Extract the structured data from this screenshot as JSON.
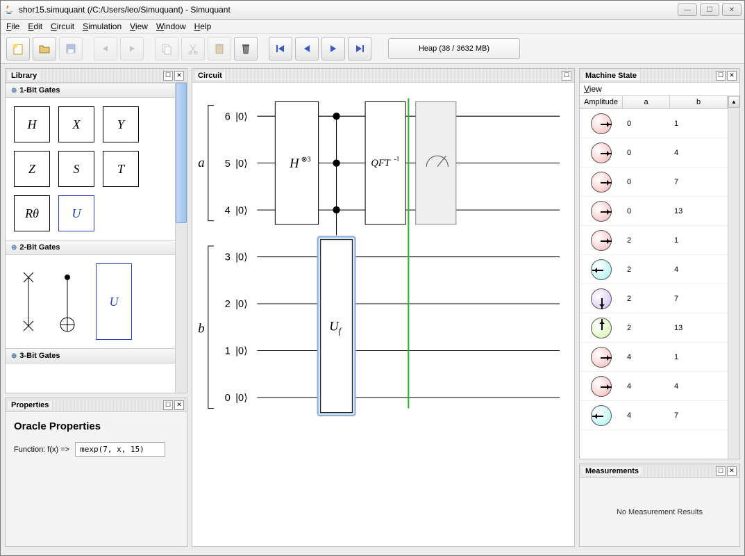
{
  "window": {
    "title": "shor15.simuquant (/C:/Users/leo/Simuquant) - Simuquant"
  },
  "menu": {
    "file": "File",
    "edit": "Edit",
    "circuit": "Circuit",
    "simulation": "Simulation",
    "view": "View",
    "window": "Window",
    "help": "Help"
  },
  "toolbar": {
    "heap": "Heap (38 / 3632 MB)"
  },
  "panels": {
    "library": "Library",
    "circuit": "Circuit",
    "properties": "Properties",
    "machine_state": "Machine State",
    "measurements": "Measurements"
  },
  "library": {
    "cat1": "1-Bit Gates",
    "cat2": "2-Bit Gates",
    "cat3": "3-Bit Gates",
    "gates1": {
      "h": "H",
      "x": "X",
      "y": "Y",
      "z": "Z",
      "s": "S",
      "t": "T",
      "rtheta": "Rθ",
      "u": "U"
    },
    "gates2": {
      "u": "U"
    }
  },
  "properties": {
    "title": "Oracle Properties",
    "label": "Function: f(x) =>",
    "value": "mexp(7, x, 15)"
  },
  "circuit": {
    "reg_a": "a",
    "reg_b": "b",
    "qubits_a": [
      {
        "idx": "6",
        "ket": "|0⟩"
      },
      {
        "idx": "5",
        "ket": "|0⟩"
      },
      {
        "idx": "4",
        "ket": "|0⟩"
      }
    ],
    "qubits_b": [
      {
        "idx": "3",
        "ket": "|0⟩"
      },
      {
        "idx": "2",
        "ket": "|0⟩"
      },
      {
        "idx": "1",
        "ket": "|0⟩"
      },
      {
        "idx": "0",
        "ket": "|0⟩"
      }
    ],
    "gate_h": "H",
    "gate_h_sup": "⊗3",
    "gate_uf": "U",
    "gate_uf_sub": "f",
    "gate_qft": "QFT",
    "gate_qft_sup": "-1"
  },
  "machine_state": {
    "view": "View",
    "col_amp": "Amplitude",
    "col_a": "a",
    "col_b": "b",
    "rows": [
      {
        "color": "#f9b5b5",
        "angle": 0,
        "a": "0",
        "b": "1"
      },
      {
        "color": "#f9b5b5",
        "angle": 0,
        "a": "0",
        "b": "4"
      },
      {
        "color": "#f9b5b5",
        "angle": 0,
        "a": "0",
        "b": "7"
      },
      {
        "color": "#f9b5b5",
        "angle": 0,
        "a": "0",
        "b": "13"
      },
      {
        "color": "#f9b5b5",
        "angle": 0,
        "a": "2",
        "b": "1"
      },
      {
        "color": "#a4f5f0",
        "angle": 180,
        "a": "2",
        "b": "4"
      },
      {
        "color": "#d4b8f5",
        "angle": 270,
        "a": "2",
        "b": "7"
      },
      {
        "color": "#d4f5a4",
        "angle": 90,
        "a": "2",
        "b": "13"
      },
      {
        "color": "#f9b5b5",
        "angle": 0,
        "a": "4",
        "b": "1"
      },
      {
        "color": "#f9b5b5",
        "angle": 0,
        "a": "4",
        "b": "4"
      },
      {
        "color": "#a4f5f0",
        "angle": 180,
        "a": "4",
        "b": "7"
      }
    ]
  },
  "measurements": {
    "empty": "No Measurement Results"
  }
}
